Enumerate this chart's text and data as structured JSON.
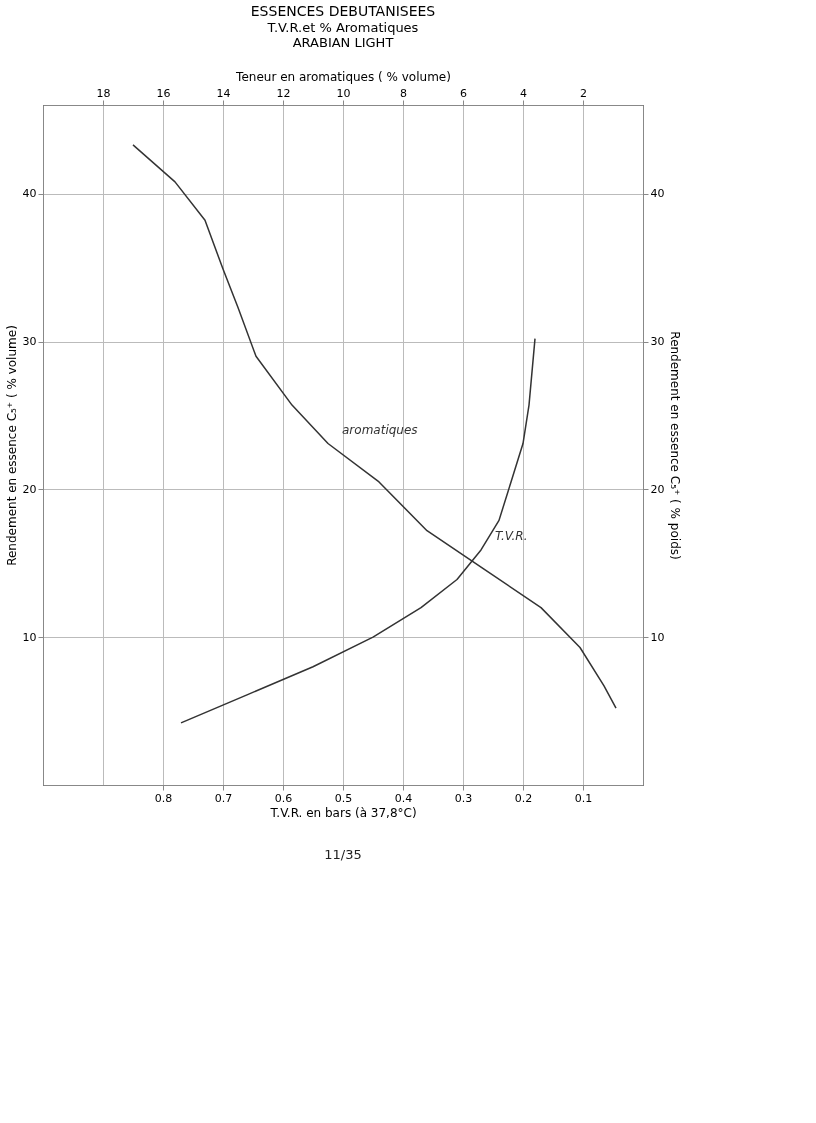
{
  "chart_data": {
    "type": "line",
    "title": "ESSENCES DEBUTANISEES",
    "subtitle": "T.V.R.et % Aromatiques",
    "xlabel": "T.V.R. en bars (à 37,8°C)",
    "x2label": "Teneur en aromatiques ( % volume)",
    "ylabel": "Rendement en essence C₅⁺ ( % volume)",
    "y2label": "Rendement en essence C₅⁺ ( % poids)",
    "annotations": [
      "ARABIAN LIGHT",
      "11/35"
    ],
    "xlim": [
      1.0,
      0.0
    ],
    "xticks": [
      0.8,
      0.7,
      0.6,
      0.5,
      0.4,
      0.3,
      0.2,
      0.1
    ],
    "x2lim": [
      20,
      0
    ],
    "x2ticks": [
      18,
      16,
      14,
      12,
      10,
      8,
      6,
      4,
      2
    ],
    "ylim": [
      0,
      46
    ],
    "yticks": [
      10,
      20,
      30,
      40
    ],
    "y2lim": [
      0,
      46
    ],
    "y2ticks": [
      10,
      20,
      30,
      40
    ],
    "grid": true,
    "marker": "none",
    "line_style": "solid",
    "series": [
      {
        "name": "aromatiques",
        "color": "#333333",
        "axis": "x2",
        "x": [
          17.0,
          15.6,
          14.6,
          14.0,
          13.5,
          12.9,
          11.7,
          10.5,
          8.8,
          7.2,
          5.3,
          3.4,
          2.1,
          1.3,
          0.9
        ],
        "values": [
          43.3,
          40.8,
          38.2,
          34.9,
          32.3,
          29.0,
          25.7,
          23.1,
          20.5,
          17.2,
          14.6,
          12.0,
          9.3,
          6.7,
          5.2
        ]
      },
      {
        "name": "T.V.R.",
        "color": "#333333",
        "x": [
          0.77,
          0.66,
          0.55,
          0.45,
          0.37,
          0.31,
          0.27,
          0.24,
          0.22,
          0.2,
          0.19,
          0.18
        ],
        "values": [
          4.2,
          6.1,
          8.0,
          10.0,
          12.0,
          13.9,
          15.9,
          17.9,
          20.5,
          23.1,
          25.7,
          30.2
        ]
      }
    ]
  }
}
